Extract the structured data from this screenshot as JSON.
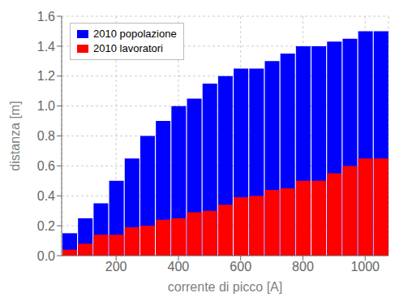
{
  "chart_data": {
    "type": "bar",
    "xlabel": "corrente di picco [A]",
    "ylabel": "distanza [m]",
    "x": [
      50,
      100,
      150,
      200,
      250,
      300,
      350,
      400,
      450,
      500,
      550,
      600,
      650,
      700,
      750,
      800,
      850,
      900,
      950,
      1000,
      1050
    ],
    "series": [
      {
        "name": "2010 popolazione",
        "color": "#0000ff",
        "values": [
          0.15,
          0.25,
          0.35,
          0.5,
          0.65,
          0.8,
          0.9,
          1.0,
          1.05,
          1.15,
          1.2,
          1.25,
          1.25,
          1.3,
          1.35,
          1.4,
          1.4,
          1.43,
          1.45,
          1.5,
          1.5
        ]
      },
      {
        "name": "2010 lavoratori",
        "color": "#ff0000",
        "values": [
          0.04,
          0.08,
          0.14,
          0.14,
          0.19,
          0.2,
          0.24,
          0.25,
          0.29,
          0.3,
          0.34,
          0.39,
          0.4,
          0.44,
          0.45,
          0.5,
          0.5,
          0.55,
          0.6,
          0.65,
          0.65
        ]
      }
    ],
    "xlim": [
      25,
      1075
    ],
    "ylim": [
      0.0,
      1.6
    ],
    "xticks": [
      200,
      400,
      600,
      800,
      1000
    ],
    "yticks": [
      {
        "value": 0,
        "label": "0.0"
      },
      0.2,
      0.4,
      0.6,
      0.8,
      {
        "value": 1,
        "label": "1.0"
      },
      1.2,
      1.4,
      1.6
    ],
    "grid": true,
    "legend": "upper left"
  }
}
